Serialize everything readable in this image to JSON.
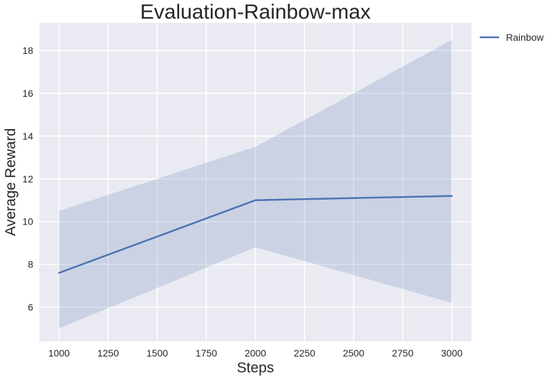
{
  "chart_data": {
    "type": "line",
    "title": "Evaluation-Rainbow-max",
    "xlabel": "Steps",
    "ylabel": "Average Reward",
    "xlim": [
      900,
      3100
    ],
    "ylim": [
      4.4,
      19.3
    ],
    "xticks": [
      1000,
      1250,
      1500,
      1750,
      2000,
      2250,
      2500,
      2750,
      3000
    ],
    "yticks": [
      6,
      8,
      10,
      12,
      14,
      16,
      18
    ],
    "grid": true,
    "legend_position": "outside-top-right",
    "series": [
      {
        "name": "Rainbow",
        "color": "#4c72b0",
        "x": [
          1000,
          2000,
          3000
        ],
        "y": [
          7.6,
          11.0,
          11.2
        ],
        "band_lower": [
          5.0,
          8.8,
          6.2
        ],
        "band_upper": [
          10.5,
          13.5,
          18.5
        ]
      }
    ],
    "style": {
      "plot_background": "#eaeaf2",
      "grid_color": "#ffffff",
      "band_opacity": 0.2
    }
  }
}
